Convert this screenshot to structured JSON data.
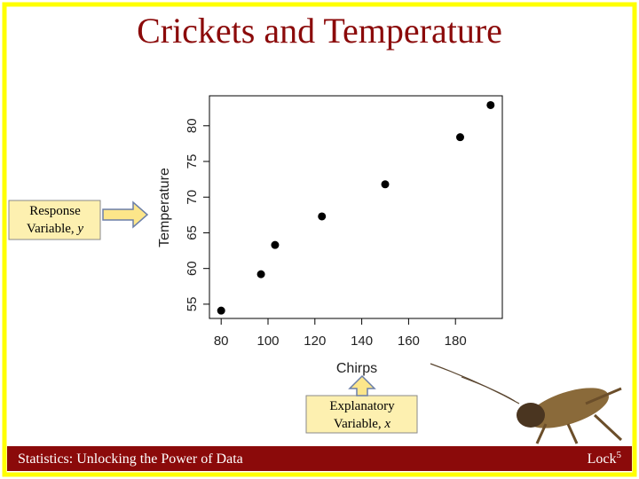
{
  "chart_data": {
    "type": "scatter",
    "title": "Crickets and Temperature",
    "x_label": "Chirps",
    "y_label": "Temperature",
    "x": [
      80,
      97,
      103,
      123,
      150,
      182,
      195
    ],
    "values": [
      54.1,
      59.2,
      63.3,
      67.3,
      71.8,
      78.4,
      82.9
    ],
    "color": "#000000",
    "xlim": [
      75,
      200
    ],
    "xticks": [
      80,
      100,
      120,
      140,
      160,
      180
    ],
    "ylim": [
      53,
      84.2
    ],
    "yticks": [
      55,
      60,
      65,
      70,
      75,
      80
    ],
    "annotations": [
      {
        "text": "Response",
        "text2": "Variable,",
        "symbol": "y"
      },
      {
        "text": "Explanatory",
        "text2": "Variable,",
        "symbol": "x"
      }
    ]
  },
  "footer": {
    "left": "Statistics: Unlocking the Power of Data",
    "right": "Lock",
    "right_sup": "5"
  }
}
